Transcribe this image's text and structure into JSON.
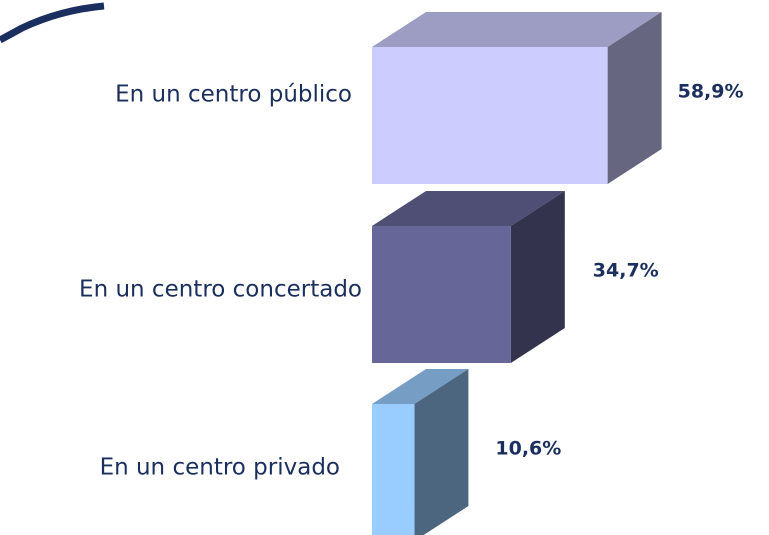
{
  "chart_data": {
    "type": "bar3d-horizontal",
    "categories": [
      "En un centro público",
      "En un centro concertado",
      "En un centro privado"
    ],
    "values": [
      58.9,
      34.7,
      10.6
    ],
    "value_labels": [
      "58,9%",
      "34,7%",
      "10,6%"
    ],
    "colors": [
      "#ccccff",
      "#666699",
      "#99ccff"
    ]
  }
}
